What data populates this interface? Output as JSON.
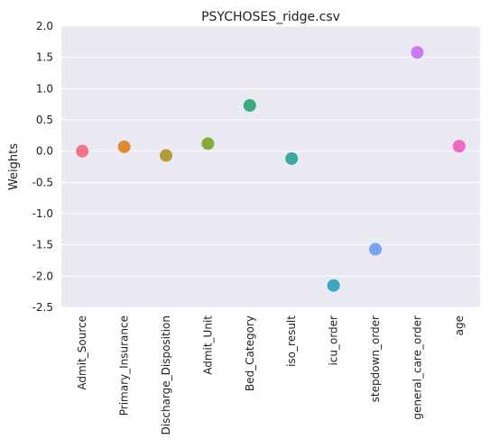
{
  "chart_data": {
    "type": "scatter",
    "title": "PSYCHOSES_ridge.csv",
    "xlabel": "",
    "ylabel": "Weights",
    "ylim": [
      -2.5,
      2.0
    ],
    "yticks": [
      2.0,
      1.5,
      1.0,
      0.5,
      0.0,
      -0.5,
      -1.0,
      -1.5,
      -2.0,
      -2.5
    ],
    "ytick_labels": [
      "2.0",
      "1.5",
      "1.0",
      "0.5",
      "0.0",
      "-0.5",
      "-1.0",
      "-1.5",
      "-2.0",
      "-2.5"
    ],
    "grid": true,
    "categories": [
      "Admit_Source",
      "Primary_Insurance",
      "Discharge_Disposition",
      "Admit_Unit",
      "Bed_Category",
      "iso_result",
      "icu_order",
      "stepdown_order",
      "general_care_order",
      "age"
    ],
    "values": [
      0.0,
      0.07,
      -0.07,
      0.12,
      0.73,
      -0.12,
      -2.15,
      -1.57,
      1.58,
      0.08
    ],
    "colors": [
      "#f77189",
      "#e18a2f",
      "#b29e32",
      "#84ae32",
      "#36ad7a",
      "#37ab9c",
      "#3aa8c1",
      "#79a1f4",
      "#cc7af4",
      "#f566c5"
    ]
  }
}
